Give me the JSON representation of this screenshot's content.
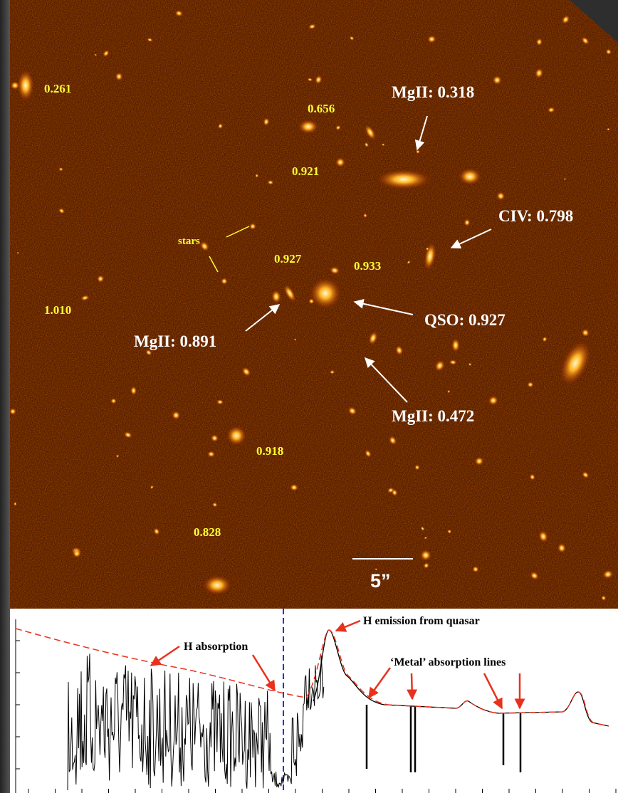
{
  "image": {
    "redshift_labels": [
      "0.261",
      "0.656",
      "0.921",
      "0.927",
      "0.933",
      "1.010",
      "0.918",
      "0.828"
    ],
    "stars_label": "stars",
    "absorber_labels": [
      "MgII: 0.318",
      "CIV: 0.798",
      "QSO:  0.927",
      "MgII: 0.891",
      "MgII: 0.472"
    ],
    "scale_bar": "5”"
  },
  "spectrum": {
    "annotations": [
      "H emission from quasar",
      "H absorption",
      "‘Metal’ absorption lines"
    ]
  }
}
